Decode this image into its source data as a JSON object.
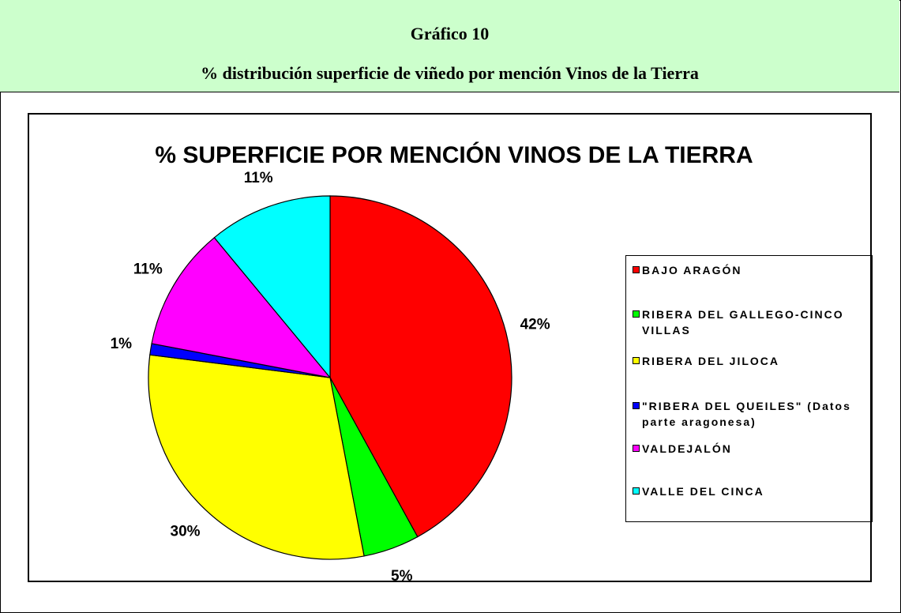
{
  "header": {
    "title": "Gráfico 10",
    "subtitle": "% distribución superficie de viñedo por mención Vinos de la Tierra"
  },
  "chart_data": {
    "type": "pie",
    "title": "% SUPERFICIE POR MENCIÓN VINOS DE LA TIERRA",
    "categories": [
      "BAJO ARAGÓN",
      "RIBERA DEL GALLEGO-CINCO VILLAS",
      "RIBERA DEL JILOCA",
      "\"RIBERA DEL QUEILES\" (Datos parte aragonesa)",
      "VALDEJALÓN",
      "VALLE DEL CINCA"
    ],
    "values": [
      42,
      5,
      30,
      1,
      11,
      11
    ],
    "value_labels": [
      "42%",
      "5%",
      "30%",
      "1%",
      "11%",
      "11%"
    ],
    "colors": [
      "#ff0000",
      "#00ff00",
      "#ffff00",
      "#0000ff",
      "#ff00ff",
      "#00ffff"
    ],
    "legend": "right"
  }
}
